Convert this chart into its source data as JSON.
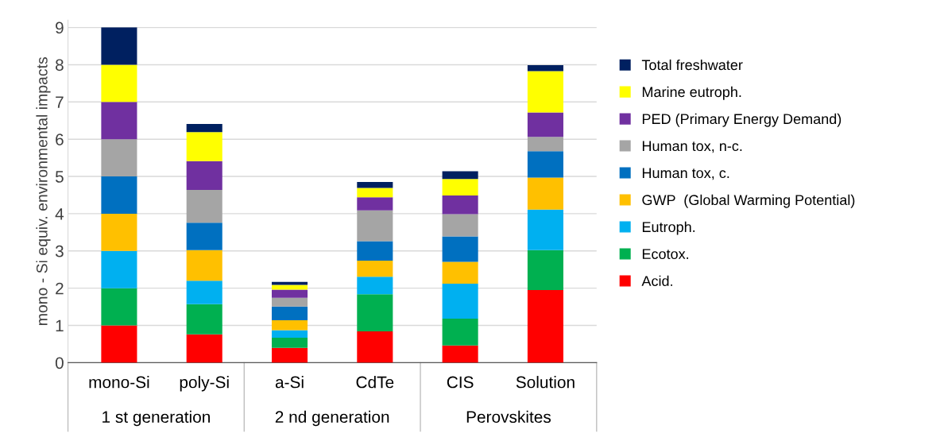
{
  "chart_data": {
    "type": "bar",
    "stacked": true,
    "ylabel": "mono - Si equiv. environmental impacts",
    "categories": [
      "mono-Si",
      "poly-Si",
      "a-Si",
      "CdTe",
      "CIS",
      "Solution"
    ],
    "series": [
      {
        "name": "Acid.",
        "color": "#ff0000",
        "values": [
          1,
          0.76,
          0.4,
          0.84,
          0.46,
          1.95
        ]
      },
      {
        "name": "Ecotox.",
        "color": "#00b050",
        "values": [
          1,
          0.81,
          0.27,
          1.0,
          0.72,
          1.07
        ]
      },
      {
        "name": "Eutroph.",
        "color": "#00b0f0",
        "values": [
          1,
          0.63,
          0.2,
          0.47,
          0.94,
          1.09
        ]
      },
      {
        "name": "GWP  (Global Warming Potential)",
        "color": "#ffc000",
        "values": [
          1,
          0.82,
          0.27,
          0.43,
          0.59,
          0.86
        ]
      },
      {
        "name": "Human tox, c.",
        "color": "#0070c0",
        "values": [
          1,
          0.74,
          0.37,
          0.52,
          0.68,
          0.71
        ]
      },
      {
        "name": "Human tox, n-c.",
        "color": "#a5a5a5",
        "values": [
          1,
          0.88,
          0.23,
          0.83,
          0.6,
          0.38
        ]
      },
      {
        "name": "PED (Primary Energy Demand)",
        "color": "#7030a0",
        "values": [
          1,
          0.77,
          0.22,
          0.35,
          0.5,
          0.66
        ]
      },
      {
        "name": "Marine eutroph.",
        "color": "#ffff00",
        "values": [
          1,
          0.78,
          0.13,
          0.25,
          0.44,
          1.11
        ]
      },
      {
        "name": "Total freshwater",
        "color": "#002060",
        "values": [
          1,
          0.22,
          0.08,
          0.16,
          0.21,
          0.16
        ]
      }
    ],
    "annotations": [
      "1 st generation",
      "2 nd generation",
      "Perovskites"
    ],
    "ylim": [
      0,
      9.2
    ],
    "yticks": [
      0,
      1,
      2,
      3,
      4,
      5,
      6,
      7,
      8,
      9
    ],
    "grid": "y",
    "legend": "right"
  }
}
